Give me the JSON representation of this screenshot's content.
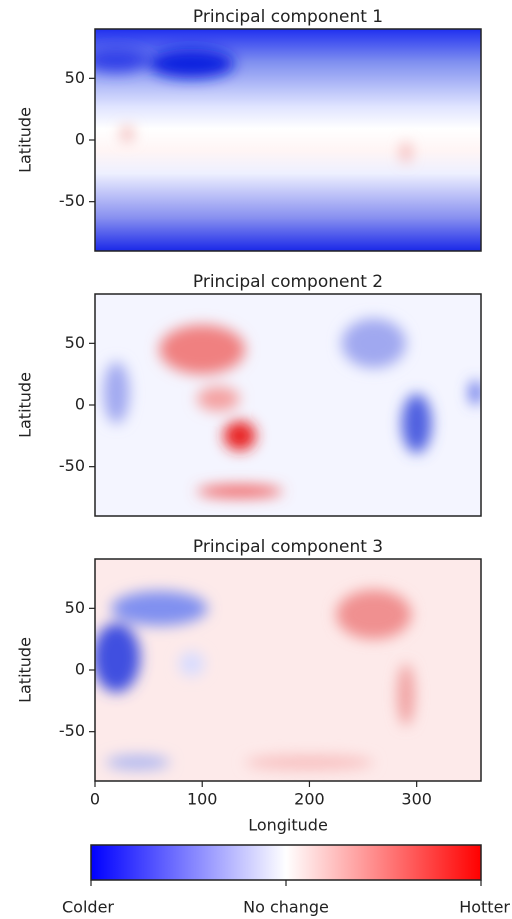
{
  "chart_data": [
    {
      "type": "heatmap",
      "title": "Principal component 1",
      "ylabel": "Latitude",
      "xlim": [
        0,
        360
      ],
      "ylim": [
        -90,
        90
      ],
      "yticks": [
        -50,
        0,
        50
      ]
    },
    {
      "type": "heatmap",
      "title": "Principal component 2",
      "ylabel": "Latitude",
      "xlim": [
        0,
        360
      ],
      "ylim": [
        -90,
        90
      ],
      "yticks": [
        -50,
        0,
        50
      ]
    },
    {
      "type": "heatmap",
      "title": "Principal component 3",
      "ylabel": "Latitude",
      "xlabel": "Longitude",
      "xlim": [
        0,
        360
      ],
      "ylim": [
        -90,
        90
      ],
      "yticks": [
        -50,
        0,
        50
      ],
      "xticks": [
        0,
        100,
        200,
        300
      ]
    }
  ],
  "colorbar": {
    "colors": [
      "#0000ff",
      "#ffffff",
      "#ff0000"
    ],
    "labels": [
      "Colder",
      "No change",
      "Hotter"
    ]
  }
}
